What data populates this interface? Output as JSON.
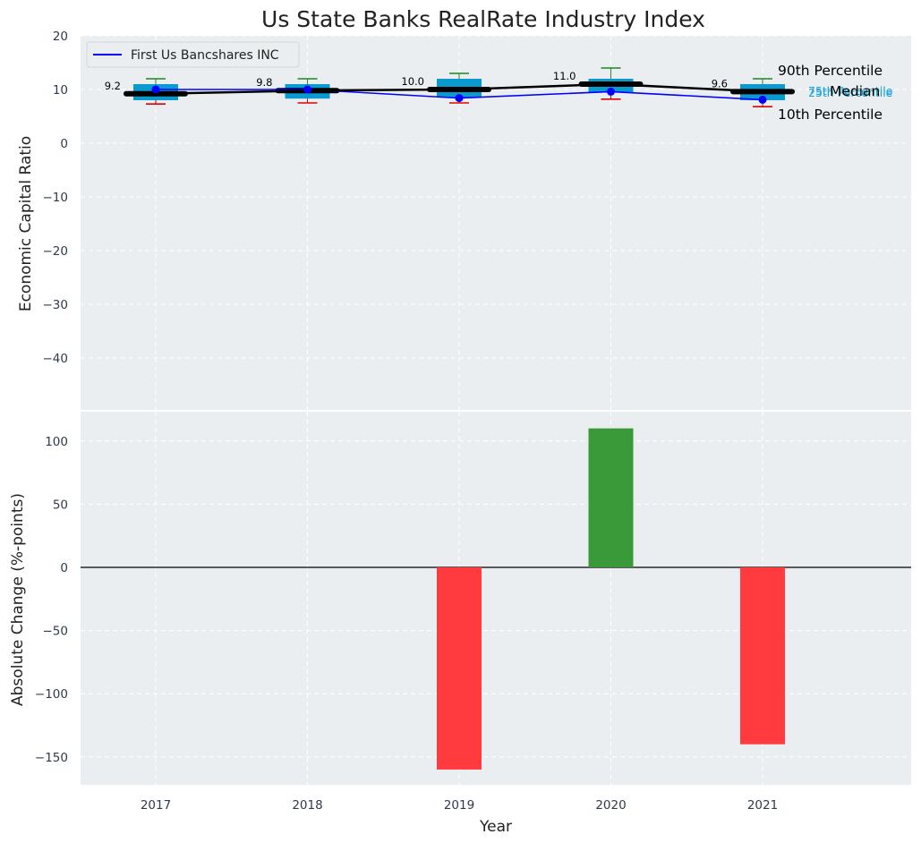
{
  "chart_data": [
    {
      "type": "box",
      "title": "Us State Banks RealRate Industry Index",
      "xlabel": "",
      "ylabel": "Economic Capital Ratio",
      "ylim": [
        -50,
        20
      ],
      "yticks": [
        20,
        10,
        0,
        -10,
        -20,
        -30,
        -40
      ],
      "grid": true,
      "legend_position": "top-left",
      "categories": [
        "2017",
        "2018",
        "2019",
        "2020",
        "2021"
      ],
      "boxes": [
        {
          "year": "2017",
          "p10": 7.3,
          "p25": 8.0,
          "median": 9.2,
          "p75": 11.0,
          "p90": 12.0
        },
        {
          "year": "2018",
          "p10": 7.5,
          "p25": 8.3,
          "median": 9.8,
          "p75": 11.0,
          "p90": 12.0
        },
        {
          "year": "2019",
          "p10": 7.5,
          "p25": 8.5,
          "median": 10.0,
          "p75": 12.0,
          "p90": 13.0
        },
        {
          "year": "2020",
          "p10": 8.2,
          "p25": 9.5,
          "median": 11.0,
          "p75": 12.0,
          "p90": 14.0
        },
        {
          "year": "2021",
          "p10": 6.8,
          "p25": 8.0,
          "median": 9.6,
          "p75": 11.0,
          "p90": 12.0
        }
      ],
      "median_labels": [
        "9.2",
        "9.8",
        "10.0",
        "11.0",
        "9.6"
      ],
      "series": [
        {
          "name": "First Us Bancshares INC",
          "color": "#0000ff",
          "values": [
            10.0,
            10.0,
            8.4,
            9.6,
            8.1
          ]
        }
      ],
      "median_line": [
        9.2,
        9.8,
        10.0,
        11.0,
        9.6
      ],
      "annotations": {
        "p90": "90th Percentile",
        "p75": "75th Percentile",
        "median": "Median",
        "p25": "25th Percentile",
        "p10": "10th Percentile"
      }
    },
    {
      "type": "bar",
      "title": "",
      "xlabel": "Year",
      "ylabel": "Absolute Change (%-points)",
      "ylim": [
        -172,
        123
      ],
      "yticks": [
        100,
        50,
        0,
        -50,
        -100,
        -150
      ],
      "grid": true,
      "categories": [
        "2017",
        "2018",
        "2019",
        "2020",
        "2021"
      ],
      "values": [
        0,
        0,
        -160,
        110,
        -140
      ],
      "colors": {
        "positive": "#3a9a3a",
        "negative": "#ff3b3f"
      }
    }
  ]
}
